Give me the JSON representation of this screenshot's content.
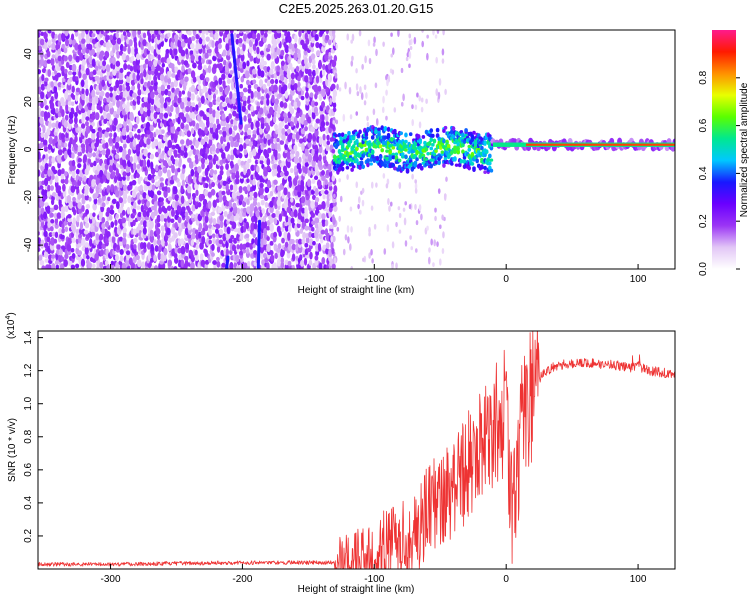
{
  "title": "C2E5.2025.263.01.20.G15",
  "chart_data": [
    {
      "type": "heatmap",
      "xlabel": "Height of straight line (km)",
      "ylabel": "Frequency (Hz)",
      "xlim": [
        -355,
        128
      ],
      "ylim": [
        -50,
        50
      ],
      "xticks": [
        -300,
        -200,
        -100,
        0,
        100
      ],
      "yticks": [
        -40,
        -20,
        0,
        20,
        40
      ],
      "colorbar": {
        "label": "Normalized spectral amplitude",
        "range": [
          0,
          1
        ],
        "ticks": [
          0.0,
          0.2,
          0.4,
          0.6,
          0.8
        ],
        "tick_labels": [
          "0.0",
          "0.2",
          "0.4",
          "0.6",
          "0.8"
        ],
        "colors": [
          "#ffffff",
          "#e2c6f6",
          "#9b35f5",
          "#6a00ff",
          "#1818ff",
          "#00c8ff",
          "#00e890",
          "#5aff00",
          "#e8ff00",
          "#ff9000",
          "#ff1a00",
          "#ff1a8c"
        ]
      },
      "regions": {
        "noise_band_x": [
          -355,
          -130
        ],
        "active_band_x": [
          -130,
          -10
        ],
        "stable_line_x": [
          -10,
          128
        ],
        "line_frequency_hz": 2,
        "streaks": [
          {
            "x0": -208,
            "y0": 48,
            "x1": -201,
            "y1": 11
          },
          {
            "x0": -188,
            "y0": -50,
            "x1": -187,
            "y1": -30
          },
          {
            "x0": -212,
            "y0": -50,
            "x1": -211,
            "y1": -45
          }
        ]
      }
    },
    {
      "type": "line",
      "xlabel": "Height of straight line (km)",
      "ylabel": "SNR (10 * v/v)",
      "y_multiplier": "(x10",
      "y_multiplier_exponent": "4",
      "y_multiplier_suffix": ")",
      "xlim": [
        -355,
        128
      ],
      "ylim": [
        0,
        1.44
      ],
      "xticks": [
        -300,
        -200,
        -100,
        0,
        100
      ],
      "yticks": [
        0.2,
        0.4,
        0.6,
        0.8,
        1.0,
        1.2,
        1.4
      ],
      "ytick_labels": [
        "0.2",
        "0.4",
        "0.6",
        "0.8",
        "1.0",
        "1.2",
        "1.4"
      ],
      "series": [
        {
          "name": "SNR",
          "color": "#ee3333",
          "x": [
            -355,
            -300,
            -250,
            -200,
            -170,
            -130,
            -115,
            -100,
            -90,
            -80,
            -70,
            -60,
            -50,
            -40,
            -30,
            -20,
            -12,
            -8,
            -4,
            0,
            4,
            8,
            12,
            20,
            30,
            40,
            60,
            80,
            95,
            100,
            110,
            120,
            128
          ],
          "values": [
            0.03,
            0.03,
            0.035,
            0.04,
            0.04,
            0.04,
            0.05,
            0.1,
            0.15,
            0.2,
            0.25,
            0.35,
            0.45,
            0.55,
            0.65,
            0.75,
            0.85,
            0.9,
            0.95,
            1.0,
            0.35,
            0.6,
            0.95,
            1.1,
            1.2,
            1.24,
            1.25,
            1.24,
            1.22,
            1.23,
            1.2,
            1.19,
            1.18
          ]
        }
      ]
    }
  ]
}
